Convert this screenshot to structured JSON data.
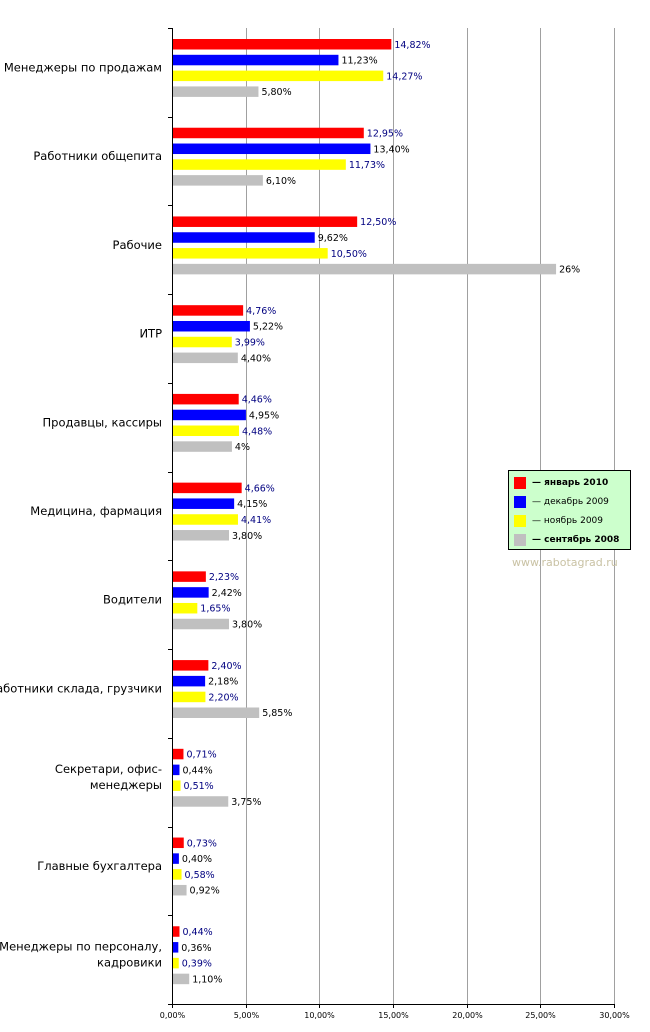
{
  "chart_data": {
    "type": "bar",
    "orientation": "horizontal",
    "categories": [
      [
        "Менеджеры по продажам"
      ],
      [
        "Работники общепита"
      ],
      [
        "Рабочие"
      ],
      [
        "ИТР"
      ],
      [
        "Продавцы, кассиры"
      ],
      [
        "Медицина, фармация"
      ],
      [
        "Водители"
      ],
      [
        "Работники склада, грузчики"
      ],
      [
        "Секретари, офис-",
        "менеджеры"
      ],
      [
        "Главные бухгалтера"
      ],
      [
        "Менеджеры по персоналу,",
        "кадровики"
      ]
    ],
    "series": [
      {
        "name": "— январь 2010",
        "color": "#ff0000",
        "label_color": "#000080",
        "bold": true,
        "values": [
          14.82,
          12.95,
          12.5,
          4.76,
          4.46,
          4.66,
          2.23,
          2.4,
          0.71,
          0.73,
          0.44
        ],
        "labels": [
          "14,82%",
          "12,95%",
          "12,50%",
          "4,76%",
          "4,46%",
          "4,66%",
          "2,23%",
          "2,40%",
          "0,71%",
          "0,73%",
          "0,44%"
        ]
      },
      {
        "name": "— декабрь 2009",
        "color": "#0000ff",
        "label_color": "#000000",
        "bold": false,
        "values": [
          11.23,
          13.4,
          9.62,
          5.22,
          4.95,
          4.15,
          2.42,
          2.18,
          0.44,
          0.4,
          0.36
        ],
        "labels": [
          "11,23%",
          "13,40%",
          "9,62%",
          "5,22%",
          "4,95%",
          "4,15%",
          "2,42%",
          "2,18%",
          "0,44%",
          "0,40%",
          "0,36%"
        ]
      },
      {
        "name": "— ноябрь 2009",
        "color": "#ffff00",
        "label_color": "#000080",
        "bold": false,
        "values": [
          14.27,
          11.73,
          10.5,
          3.99,
          4.48,
          4.41,
          1.65,
          2.2,
          0.51,
          0.58,
          0.39
        ],
        "labels": [
          "14,27%",
          "11,73%",
          "10,50%",
          "3,99%",
          "4,48%",
          "4,41%",
          "1,65%",
          "2,20%",
          "0,51%",
          "0,58%",
          "0,39%"
        ]
      },
      {
        "name": "— сентябрь 2008",
        "color": "#c0c0c0",
        "label_color": "#000000",
        "bold": true,
        "values": [
          5.8,
          6.1,
          26,
          4.4,
          4,
          3.8,
          3.8,
          5.85,
          3.75,
          0.92,
          1.1
        ],
        "labels": [
          "5,80%",
          "6,10%",
          "26%",
          "4,40%",
          "4%",
          "3,80%",
          "3,80%",
          "5,85%",
          "3,75%",
          "0,92%",
          "1,10%"
        ]
      }
    ],
    "xlim": [
      0,
      30
    ],
    "xticks": [
      0,
      5,
      10,
      15,
      20,
      25,
      30
    ],
    "xtick_labels": [
      "0,00%",
      "5,00%",
      "10,00%",
      "15,00%",
      "20,00%",
      "25,00%",
      "30,00%"
    ],
    "grid": "vertical",
    "legend_position": "right",
    "title": "",
    "xlabel": "",
    "ylabel": ""
  },
  "legend_border": "#000000",
  "legend_background": "#ccffcc",
  "watermark": "www.rabotagrad.ru"
}
